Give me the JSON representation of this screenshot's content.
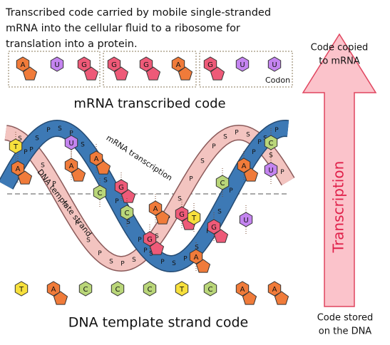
{
  "header": {
    "lines": [
      "Transcribed code carried by mobile single-stranded",
      "mRNA into the cellular fluid to a ribosome for",
      "translation into a protein."
    ]
  },
  "mrna": {
    "codons": [
      [
        "A",
        "U",
        "G"
      ],
      [
        "G",
        "G",
        "A"
      ],
      [
        "G",
        "U",
        "U"
      ]
    ],
    "codon_label": "Codon",
    "title": "mRNA transcribed code"
  },
  "helix": {
    "strand_labels": [
      "mRNA transcription",
      "DNA template strand"
    ],
    "backbone_letters": [
      "S",
      "P"
    ],
    "bases": [
      "T",
      "A",
      "U",
      "A",
      "A",
      "C",
      "G",
      "C",
      "G",
      "A",
      "G",
      "T",
      "G",
      "C",
      "A",
      "U",
      "C",
      "U",
      "A"
    ]
  },
  "dna": {
    "bases": [
      "T",
      "A",
      "C",
      "C",
      "C",
      "T",
      "C",
      "A",
      "A"
    ],
    "title": "DNA template strand code"
  },
  "arrow": {
    "label": "Transcription",
    "top_lines": [
      "Code copied",
      "to mRNA"
    ],
    "bottom_lines": [
      "Code stored",
      "on the DNA"
    ]
  },
  "base_styles": {
    "A": {
      "color": "#f07b3a",
      "shape": "purine"
    },
    "G": {
      "color": "#ee5a78",
      "shape": "purine"
    },
    "U": {
      "color": "#c484f0",
      "shape": "hex"
    },
    "C": {
      "color": "#b9d679",
      "shape": "hex"
    },
    "T": {
      "color": "#f7e03c",
      "shape": "hex"
    }
  }
}
